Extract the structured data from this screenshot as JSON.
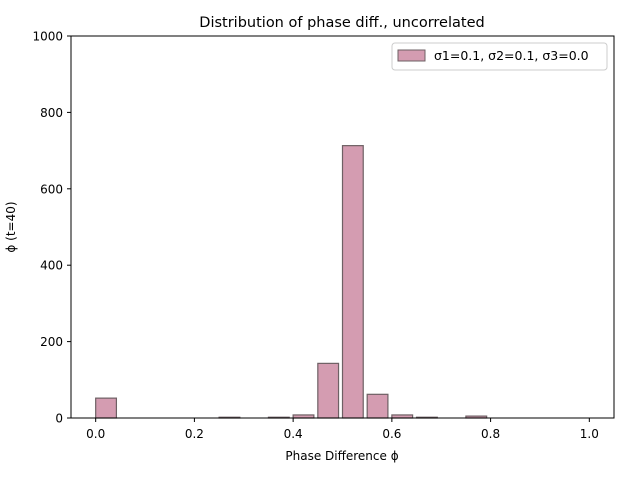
{
  "chart_data": {
    "type": "bar",
    "title": "Distribution of phase diff., uncorrelated",
    "xlabel": "Phase Difference ϕ",
    "ylabel": "ϕ (t=40)",
    "xlim": [
      -0.05,
      1.05
    ],
    "ylim": [
      0,
      1000
    ],
    "xticks": [
      0.0,
      0.2,
      0.4,
      0.6,
      0.8,
      1.0
    ],
    "xtick_labels": [
      "0.0",
      "0.2",
      "0.4",
      "0.6",
      "0.8",
      "1.0"
    ],
    "yticks": [
      0,
      200,
      400,
      600,
      800,
      1000
    ],
    "ytick_labels": [
      "0",
      "200",
      "400",
      "600",
      "800",
      "1000"
    ],
    "grid": false,
    "legend_position": "top-right",
    "bar_width": 0.042,
    "series": [
      {
        "name": "σ1=0.1, σ2=0.1, σ3=0.0",
        "color": "#d49cb1",
        "edgecolor": "#6e6064",
        "bins": [
          0.0,
          0.05,
          0.1,
          0.15,
          0.2,
          0.25,
          0.3,
          0.35,
          0.4,
          0.45,
          0.5,
          0.55,
          0.6,
          0.65,
          0.7,
          0.75,
          0.8,
          0.85,
          0.9,
          0.95
        ],
        "values": [
          52,
          0,
          0,
          0,
          0,
          2,
          0,
          2,
          8,
          143,
          713,
          62,
          8,
          2,
          0,
          5,
          0,
          0,
          0,
          0
        ]
      }
    ]
  }
}
